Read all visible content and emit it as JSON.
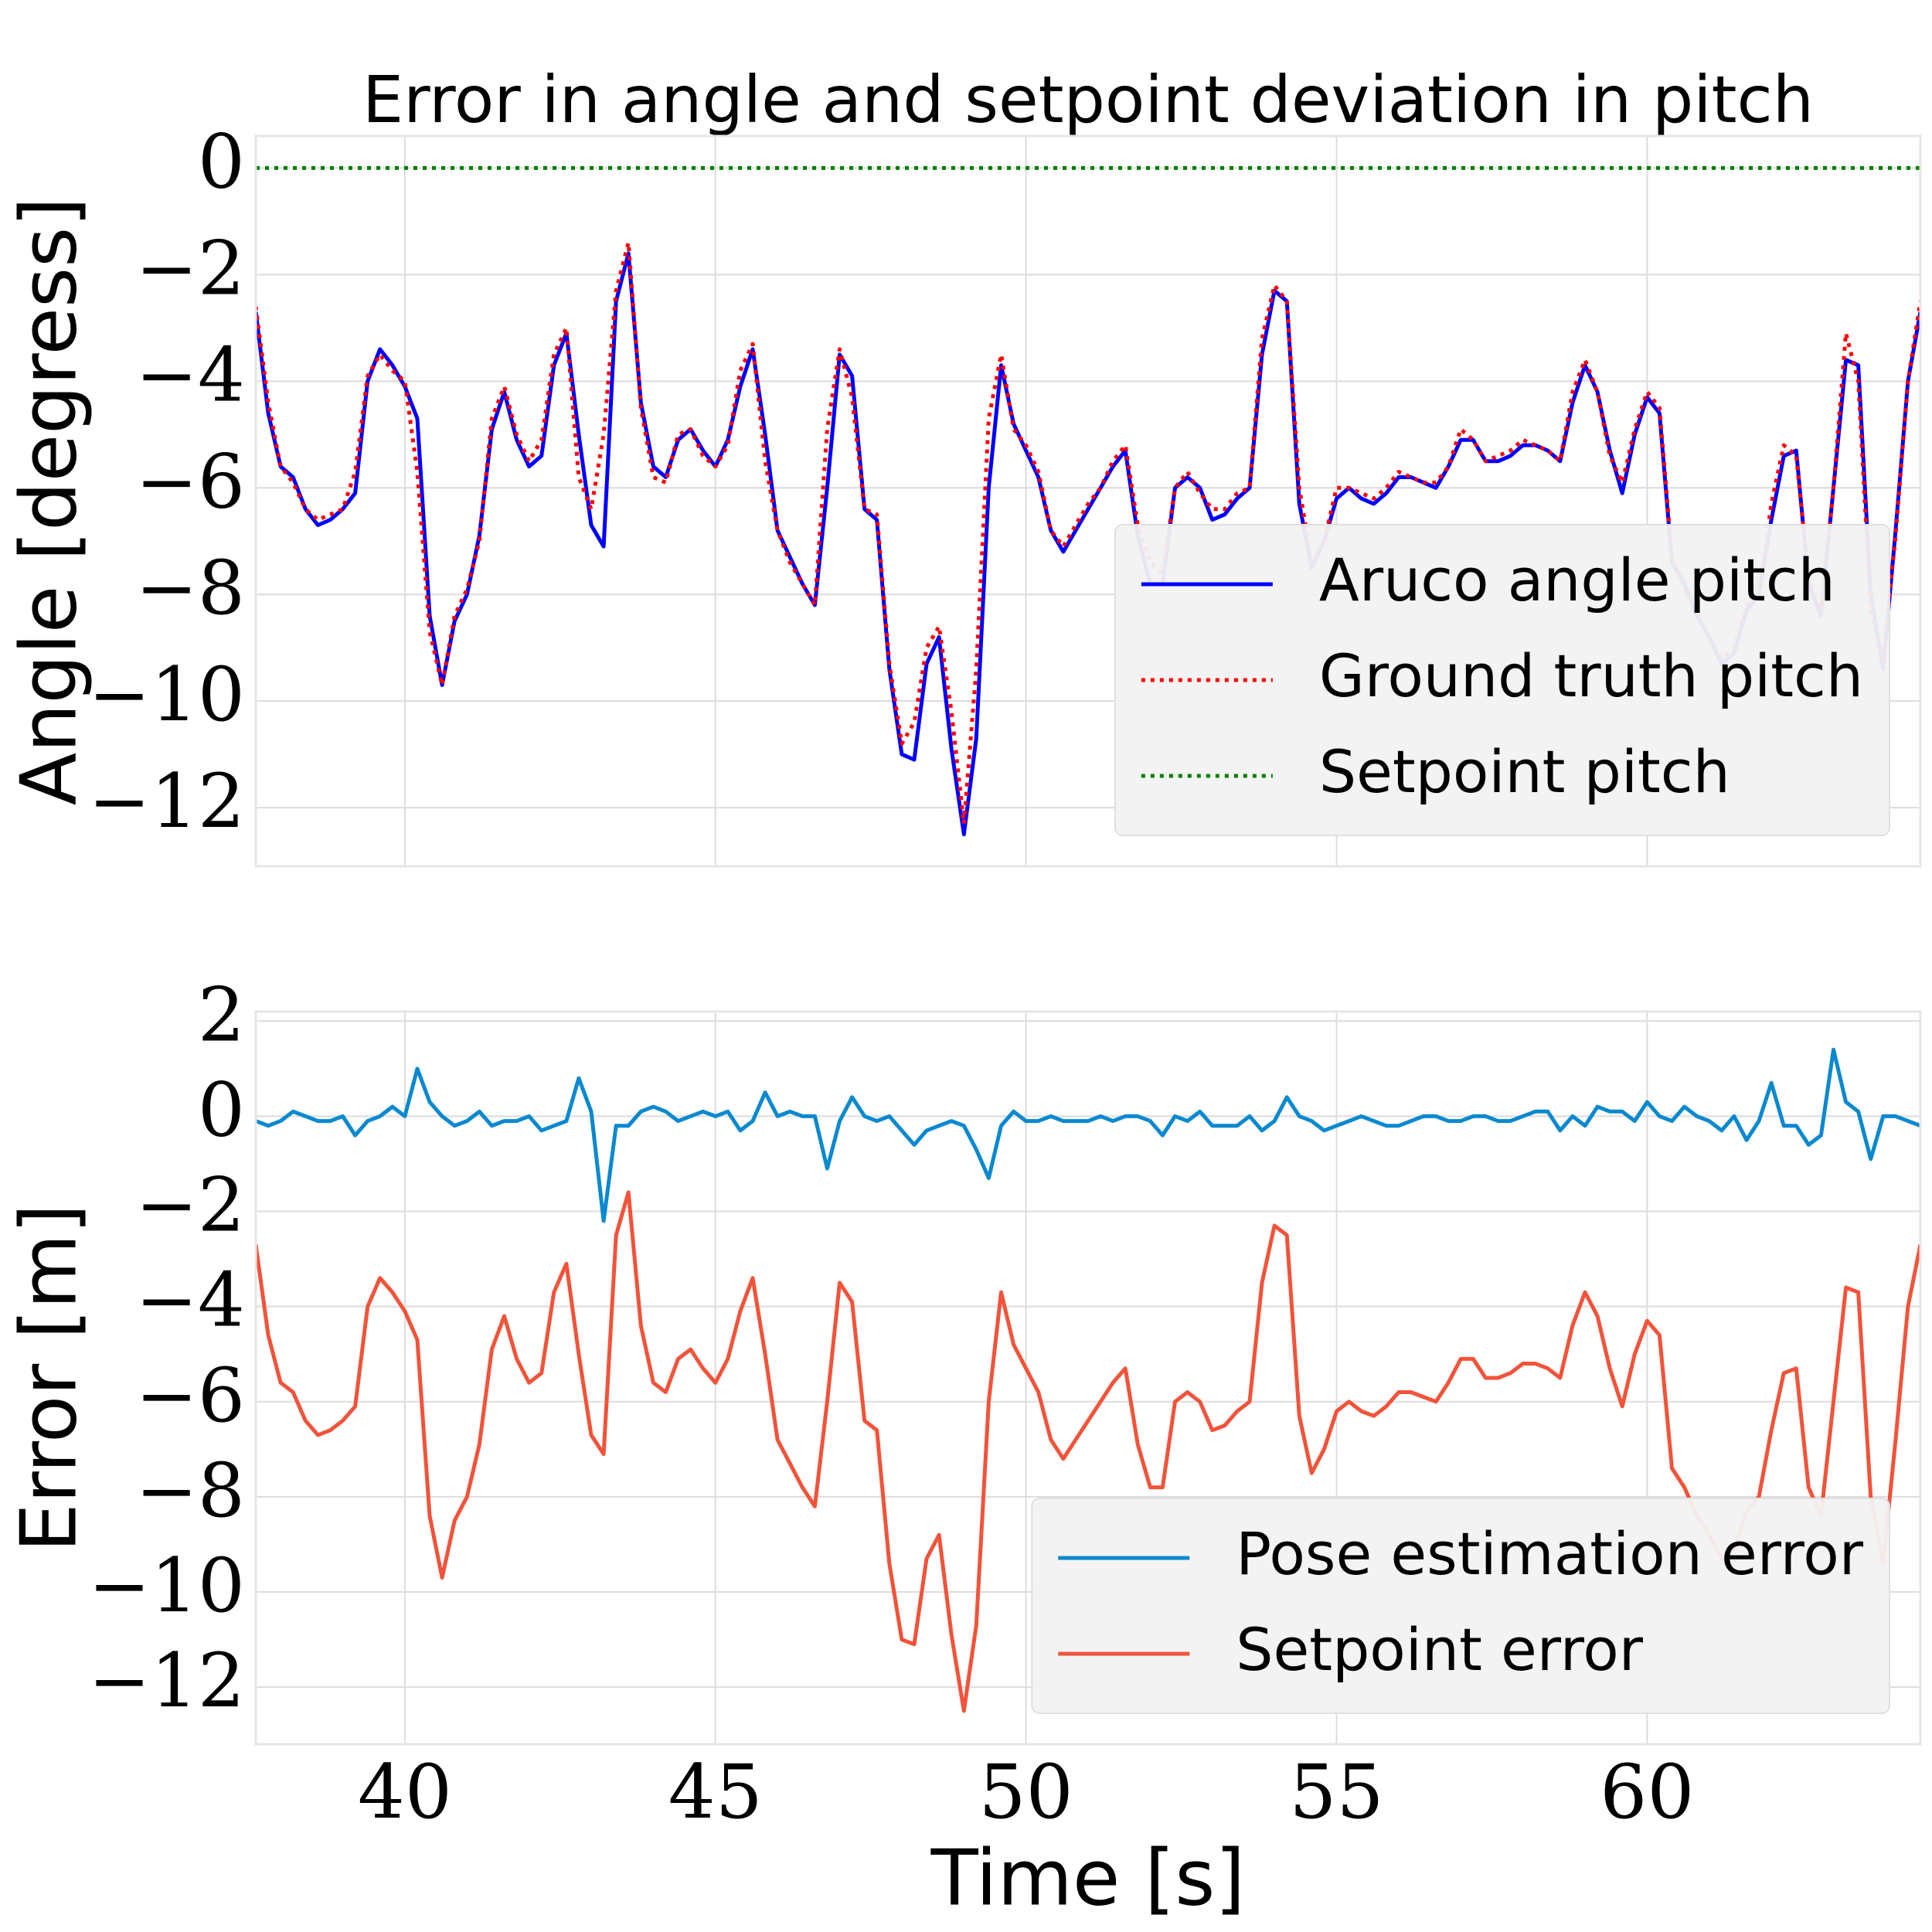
{
  "chart_data": [
    {
      "type": "line",
      "title": "Error in angle and setpoint deviation in pitch",
      "ylabel": "Angle [degress]",
      "x": [
        37.6,
        37.8,
        38,
        38.2,
        38.4,
        38.6,
        38.8,
        39,
        39.2,
        39.4,
        39.6,
        39.8,
        40,
        40.2,
        40.4,
        40.6,
        40.8,
        41,
        41.2,
        41.4,
        41.6,
        41.8,
        42,
        42.2,
        42.4,
        42.6,
        42.8,
        43,
        43.2,
        43.4,
        43.6,
        43.8,
        44,
        44.2,
        44.4,
        44.6,
        44.8,
        45,
        45.2,
        45.4,
        45.6,
        45.8,
        46,
        46.2,
        46.4,
        46.6,
        46.8,
        47,
        47.2,
        47.4,
        47.6,
        47.8,
        48,
        48.2,
        48.4,
        48.6,
        48.8,
        49,
        49.2,
        49.4,
        49.6,
        49.8,
        50,
        50.2,
        50.4,
        50.6,
        50.8,
        51,
        51.2,
        51.4,
        51.6,
        51.8,
        52,
        52.2,
        52.4,
        52.6,
        52.8,
        53,
        53.2,
        53.4,
        53.6,
        53.8,
        54,
        54.2,
        54.4,
        54.6,
        54.8,
        55,
        55.2,
        55.4,
        55.6,
        55.8,
        56,
        56.2,
        56.4,
        56.6,
        56.8,
        57,
        57.2,
        57.4,
        57.6,
        57.8,
        58,
        58.2,
        58.4,
        58.6,
        58.8,
        59,
        59.2,
        59.4,
        59.6,
        59.8,
        60,
        60.2,
        60.4,
        60.6,
        60.8,
        61,
        61.2,
        61.4,
        61.6,
        61.8,
        62,
        62.2,
        62.4,
        62.6,
        62.8,
        63,
        63.2,
        63.4,
        63.6,
        63.8,
        64,
        64.2,
        64.4
      ],
      "series": [
        {
          "name": "Aruco angle pitch",
          "color": "#0000ff",
          "style": "solid",
          "values": [
            -2.7,
            -4.6,
            -5.6,
            -5.8,
            -6.4,
            -6.7,
            -6.6,
            -6.4,
            -6.1,
            -4.0,
            -3.4,
            -3.7,
            -4.1,
            -4.7,
            -8.4,
            -9.7,
            -8.5,
            -8.0,
            -6.9,
            -4.9,
            -4.2,
            -5.1,
            -5.6,
            -5.4,
            -3.7,
            -3.1,
            -5.0,
            -6.7,
            -7.1,
            -2.5,
            -1.6,
            -4.4,
            -5.6,
            -5.8,
            -5.1,
            -4.9,
            -5.3,
            -5.6,
            -5.1,
            -4.1,
            -3.4,
            -5.0,
            -6.8,
            -7.3,
            -7.8,
            -8.2,
            -6.0,
            -3.5,
            -3.9,
            -6.4,
            -6.6,
            -9.4,
            -11.0,
            -11.1,
            -9.3,
            -8.8,
            -10.9,
            -12.5,
            -10.7,
            -6.0,
            -3.7,
            -4.8,
            -5.3,
            -5.8,
            -6.8,
            -7.2,
            -6.8,
            -6.4,
            -6.0,
            -5.6,
            -5.3,
            -6.9,
            -7.8,
            -7.8,
            -6.0,
            -5.8,
            -6.0,
            -6.6,
            -6.5,
            -6.2,
            -6.0,
            -3.5,
            -2.3,
            -2.5,
            -6.3,
            -7.5,
            -7.0,
            -6.2,
            -6.0,
            -6.2,
            -6.3,
            -6.1,
            -5.8,
            -5.8,
            -5.9,
            -6.0,
            -5.6,
            -5.1,
            -5.1,
            -5.5,
            -5.5,
            -5.4,
            -5.2,
            -5.2,
            -5.3,
            -5.5,
            -4.4,
            -3.7,
            -4.2,
            -5.3,
            -6.1,
            -5.0,
            -4.3,
            -4.6,
            -7.4,
            -7.8,
            -8.4,
            -8.8,
            -9.3,
            -9.1,
            -8.3,
            -8.0,
            -6.6,
            -5.4,
            -5.3,
            -7.8,
            -8.4,
            -6.0,
            -3.6,
            -3.7,
            -8.0,
            -9.4,
            -6.8,
            -4.0,
            -2.7
          ]
        },
        {
          "name": "Ground truth pitch",
          "color": "#ff0000",
          "style": "dotted",
          "values": [
            -2.6,
            -4.4,
            -5.6,
            -5.9,
            -6.4,
            -6.6,
            -6.5,
            -6.4,
            -5.7,
            -3.9,
            -3.5,
            -3.8,
            -4.0,
            -5.7,
            -8.7,
            -9.7,
            -8.4,
            -7.9,
            -7.0,
            -4.7,
            -4.1,
            -5.0,
            -5.5,
            -5.1,
            -3.5,
            -3.0,
            -5.8,
            -6.4,
            -5.0,
            -2.3,
            -1.4,
            -4.5,
            -5.8,
            -5.9,
            -5.0,
            -4.9,
            -5.4,
            -5.6,
            -5.2,
            -3.8,
            -3.3,
            -5.5,
            -6.8,
            -7.4,
            -7.8,
            -8.2,
            -4.9,
            -3.4,
            -4.3,
            -6.4,
            -6.5,
            -9.3,
            -10.8,
            -10.4,
            -9.0,
            -8.6,
            -10.2,
            -12.3,
            -9.4,
            -4.7,
            -3.5,
            -4.9,
            -5.2,
            -5.7,
            -6.8,
            -7.1,
            -6.7,
            -6.3,
            -6.0,
            -5.5,
            -5.2,
            -6.7,
            -7.4,
            -7.6,
            -6.0,
            -5.7,
            -6.1,
            -6.4,
            -6.4,
            -6.1,
            -6.0,
            -3.2,
            -2.2,
            -2.5,
            -6.0,
            -7.4,
            -7.0,
            -6.0,
            -6.0,
            -6.1,
            -6.2,
            -6.0,
            -5.7,
            -5.8,
            -5.9,
            -5.9,
            -5.6,
            -4.9,
            -5.1,
            -5.5,
            -5.4,
            -5.3,
            -5.1,
            -5.2,
            -5.3,
            -5.5,
            -4.2,
            -3.6,
            -4.2,
            -5.4,
            -5.9,
            -4.9,
            -4.2,
            -4.5,
            -7.3,
            -7.9,
            -8.3,
            -8.8,
            -9.2,
            -9.0,
            -8.2,
            -8.0,
            -6.3,
            -5.2,
            -5.4,
            -7.7,
            -8.3,
            -6.0,
            -3.1,
            -4.0,
            -8.3,
            -9.2,
            -6.9,
            -4.0,
            -2.5
          ]
        },
        {
          "name": "Setpoint pitch",
          "color": "#008000",
          "style": "dotted",
          "x": [
            37.6,
            64.4
          ],
          "values": [
            0,
            0
          ]
        }
      ],
      "xlim": [
        37.6,
        64.4
      ],
      "ylim": [
        -13.1,
        0.6
      ],
      "yticks": [
        {
          "value": -12,
          "label": "−12"
        },
        {
          "value": -10,
          "label": "−10"
        },
        {
          "value": -8,
          "label": "−8"
        },
        {
          "value": -6,
          "label": "−6"
        },
        {
          "value": -4,
          "label": "−4"
        },
        {
          "value": -2,
          "label": "−2"
        },
        0
      ],
      "xticks": [
        40,
        45,
        50,
        55,
        60
      ],
      "grid": true,
      "legend": "lower right"
    },
    {
      "type": "line",
      "ylabel": "Error [m]",
      "xlabel": "Time [s]",
      "x": [
        37.6,
        37.8,
        38,
        38.2,
        38.4,
        38.6,
        38.8,
        39,
        39.2,
        39.4,
        39.6,
        39.8,
        40,
        40.2,
        40.4,
        40.6,
        40.8,
        41,
        41.2,
        41.4,
        41.6,
        41.8,
        42,
        42.2,
        42.4,
        42.6,
        42.8,
        43,
        43.2,
        43.4,
        43.6,
        43.8,
        44,
        44.2,
        44.4,
        44.6,
        44.8,
        45,
        45.2,
        45.4,
        45.6,
        45.8,
        46,
        46.2,
        46.4,
        46.6,
        46.8,
        47,
        47.2,
        47.4,
        47.6,
        47.8,
        48,
        48.2,
        48.4,
        48.6,
        48.8,
        49,
        49.2,
        49.4,
        49.6,
        49.8,
        50,
        50.2,
        50.4,
        50.6,
        50.8,
        51,
        51.2,
        51.4,
        51.6,
        51.8,
        52,
        52.2,
        52.4,
        52.6,
        52.8,
        53,
        53.2,
        53.4,
        53.6,
        53.8,
        54,
        54.2,
        54.4,
        54.6,
        54.8,
        55,
        55.2,
        55.4,
        55.6,
        55.8,
        56,
        56.2,
        56.4,
        56.6,
        56.8,
        57,
        57.2,
        57.4,
        57.6,
        57.8,
        58,
        58.2,
        58.4,
        58.6,
        58.8,
        59,
        59.2,
        59.4,
        59.6,
        59.8,
        60,
        60.2,
        60.4,
        60.6,
        60.8,
        61,
        61.2,
        61.4,
        61.6,
        61.8,
        62,
        62.2,
        62.4,
        62.6,
        62.8,
        63,
        63.2,
        63.4,
        63.6,
        63.8,
        64,
        64.2,
        64.4
      ],
      "series": [
        {
          "name": "Pose estimation error",
          "color": "#0a89cf",
          "style": "solid",
          "values": [
            -0.1,
            -0.2,
            -0.1,
            0.1,
            0,
            -0.1,
            -0.1,
            0,
            -0.4,
            -0.1,
            0,
            0.2,
            0,
            1.0,
            0.3,
            0,
            -0.2,
            -0.1,
            0.1,
            -0.2,
            -0.1,
            -0.1,
            0,
            -0.3,
            -0.2,
            -0.1,
            0.8,
            0.1,
            -2.2,
            -0.2,
            -0.2,
            0.1,
            0.2,
            0.1,
            -0.1,
            0,
            0.1,
            0,
            0.1,
            -0.3,
            -0.1,
            0.5,
            0,
            0.1,
            0,
            0,
            -1.1,
            -0.1,
            0.4,
            0,
            -0.1,
            0,
            -0.3,
            -0.6,
            -0.3,
            -0.2,
            -0.1,
            -0.2,
            -0.7,
            -1.3,
            -0.2,
            0.1,
            -0.1,
            -0.1,
            0,
            -0.1,
            -0.1,
            -0.1,
            0,
            -0.1,
            0,
            0,
            -0.1,
            -0.4,
            0,
            -0.1,
            0.1,
            -0.2,
            -0.2,
            -0.2,
            0,
            -0.3,
            -0.1,
            0.4,
            0,
            -0.1,
            -0.3,
            -0.2,
            -0.1,
            0,
            -0.1,
            -0.2,
            -0.2,
            -0.1,
            0,
            0,
            -0.1,
            -0.1,
            0,
            0,
            -0.1,
            -0.1,
            0,
            0.1,
            0.1,
            -0.3,
            0,
            -0.2,
            0.2,
            0.1,
            0.1,
            -0.1,
            0.3,
            0,
            -0.1,
            0.2,
            0,
            -0.1,
            -0.3,
            0,
            -0.5,
            -0.1,
            0.7,
            -0.2,
            -0.2,
            -0.6,
            -0.4,
            1.4,
            0.3,
            0.1,
            -0.9,
            0,
            0,
            -0.1,
            -0.2
          ]
        },
        {
          "name": "Setpoint error",
          "color": "#f2533a",
          "style": "solid",
          "values": [
            -2.7,
            -4.6,
            -5.6,
            -5.8,
            -6.4,
            -6.7,
            -6.6,
            -6.4,
            -6.1,
            -4.0,
            -3.4,
            -3.7,
            -4.1,
            -4.7,
            -8.4,
            -9.7,
            -8.5,
            -8.0,
            -6.9,
            -4.9,
            -4.2,
            -5.1,
            -5.6,
            -5.4,
            -3.7,
            -3.1,
            -5.0,
            -6.7,
            -7.1,
            -2.5,
            -1.6,
            -4.4,
            -5.6,
            -5.8,
            -5.1,
            -4.9,
            -5.3,
            -5.6,
            -5.1,
            -4.1,
            -3.4,
            -5.0,
            -6.8,
            -7.3,
            -7.8,
            -8.2,
            -6.0,
            -3.5,
            -3.9,
            -6.4,
            -6.6,
            -9.4,
            -11.0,
            -11.1,
            -9.3,
            -8.8,
            -10.9,
            -12.5,
            -10.7,
            -6.0,
            -3.7,
            -4.8,
            -5.3,
            -5.8,
            -6.8,
            -7.2,
            -6.8,
            -6.4,
            -6.0,
            -5.6,
            -5.3,
            -6.9,
            -7.8,
            -7.8,
            -6.0,
            -5.8,
            -6.0,
            -6.6,
            -6.5,
            -6.2,
            -6.0,
            -3.5,
            -2.3,
            -2.5,
            -6.3,
            -7.5,
            -7.0,
            -6.2,
            -6.0,
            -6.2,
            -6.3,
            -6.1,
            -5.8,
            -5.8,
            -5.9,
            -6.0,
            -5.6,
            -5.1,
            -5.1,
            -5.5,
            -5.5,
            -5.4,
            -5.2,
            -5.2,
            -5.3,
            -5.5,
            -4.4,
            -3.7,
            -4.2,
            -5.3,
            -6.1,
            -5.0,
            -4.3,
            -4.6,
            -7.4,
            -7.8,
            -8.4,
            -8.8,
            -9.3,
            -9.1,
            -8.3,
            -8.0,
            -6.6,
            -5.4,
            -5.3,
            -7.8,
            -8.4,
            -6.0,
            -3.6,
            -3.7,
            -8.0,
            -9.4,
            -6.8,
            -4.0,
            -2.7
          ]
        }
      ],
      "xlim": [
        37.6,
        64.4
      ],
      "ylim": [
        -13.2,
        2.2
      ],
      "yticks": [
        {
          "value": -12,
          "label": "−12"
        },
        {
          "value": -10,
          "label": "−10"
        },
        {
          "value": -8,
          "label": "−8"
        },
        {
          "value": -6,
          "label": "−6"
        },
        {
          "value": -4,
          "label": "−4"
        },
        {
          "value": -2,
          "label": "−2"
        },
        0,
        2
      ],
      "xticks": [
        40,
        45,
        50,
        55,
        60
      ],
      "grid": true,
      "legend": "lower right"
    }
  ]
}
